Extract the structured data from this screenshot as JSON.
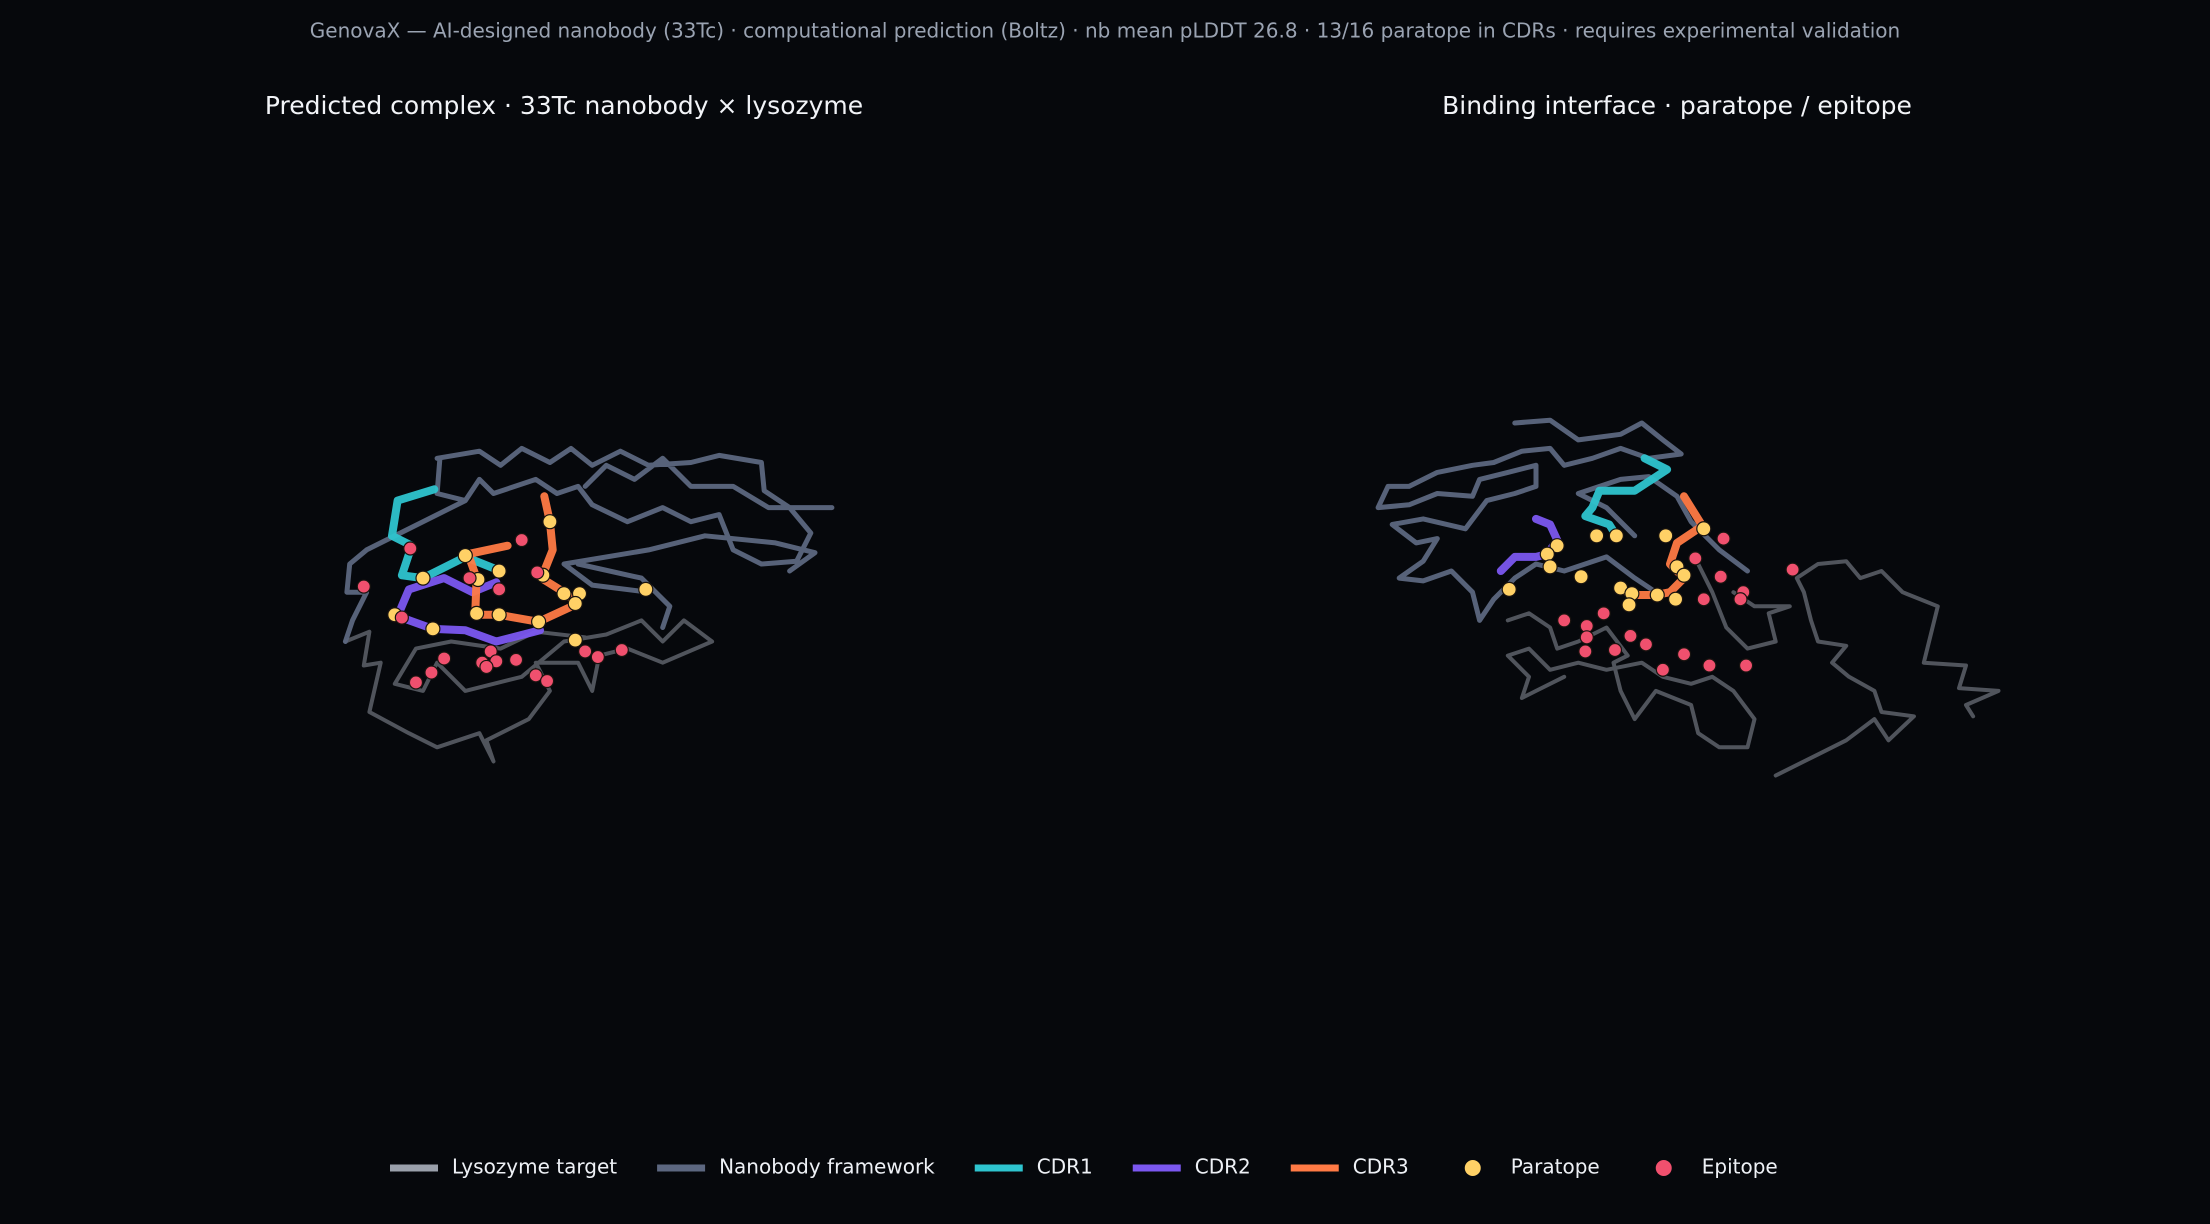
{
  "subtitle": "GenovaX — AI-designed nanobody (33Tc) · computational prediction (Boltz) · nb mean pLDDT 26.8 · 13/16 paratope in CDRs · requires experimental validation",
  "chart_data": {
    "type": "structure",
    "series": [
      {
        "name": "Lysozyme target",
        "color": "#9aa0ab",
        "kind": "line",
        "width": 4
      },
      {
        "name": "Nanobody framework",
        "color": "#5c6780",
        "kind": "line",
        "width": 5
      },
      {
        "name": "CDR1",
        "color": "#2ec4cf",
        "kind": "line",
        "width": 8
      },
      {
        "name": "CDR2",
        "color": "#7b57f0",
        "kind": "line",
        "width": 8
      },
      {
        "name": "CDR3",
        "color": "#ff7a45",
        "kind": "line",
        "width": 8
      },
      {
        "name": "Paratope",
        "color": "#ffd166",
        "kind": "point",
        "width": 7
      },
      {
        "name": "Epitope",
        "color": "#f0506e",
        "kind": "point",
        "width": 6.5
      }
    ],
    "panels": [
      {
        "title": "Predicted complex · 33Tc nanobody × lysozyme",
        "xlim": [
          100,
          700
        ],
        "ylim": [
          800,
          100
        ],
        "traces": [
          {
            "x": [
              245,
              262,
              258,
              270,
              262,
              290,
              310,
              340,
              350,
              345,
              375,
              390,
              380,
              410,
              420,
              425,
              445,
              470,
              505,
              485,
              470,
              455,
              430,
              400,
              370,
              330,
              310,
              300,
              280,
              295,
              320,
              355,
              380,
              415
            ],
            "y": [
              455,
              448,
              472,
              470,
              505,
              520,
              530,
              520,
              540,
              525,
              510,
              490,
              470,
              470,
              490,
              465,
              460,
              470,
              455,
              440,
              455,
              440,
              450,
              455,
              480,
              490,
              470,
              490,
              485,
              460,
              455,
              460,
              448,
              452
            ]
          },
          {
            "x": [
              310,
              340,
              355,
              370,
              390,
              405,
              420,
              440,
              460,
              490,
              510,
              540,
              542,
              560,
              575,
              565,
              540,
              520,
              510,
              490,
              470,
              445,
              420,
              410,
              395,
              380,
              350,
              340,
              330,
              310,
              312,
              null,
              415,
              430,
              450,
              470,
              490,
              520,
              545,
              590,
              null,
              460,
              420,
              400,
              460,
              500,
              550,
              578,
              560,
              null,
              330,
              260,
              248,
              246,
              260,
              250,
              245,
              null,
              410,
              455,
              475,
              470
            ],
            "y": [
              325,
              320,
              330,
              318,
              328,
              318,
              330,
              320,
              330,
              328,
              323,
              328,
              348,
              360,
              378,
              398,
              400,
              390,
              365,
              370,
              360,
              370,
              358,
              345,
              350,
              340,
              350,
              340,
              355,
              350,
              325,
              null,
              345,
              330,
              340,
              325,
              345,
              345,
              360,
              360,
              null,
              420,
              415,
              400,
              390,
              380,
              385,
              392,
              405,
              null,
              355,
              390,
              400,
              420,
              420,
              440,
              455,
              null,
              400,
              410,
              430,
              445
            ]
          },
          {
            "x": [
              308,
              282,
              278,
              292,
              285,
              300,
              330,
              355
            ],
            "y": [
              347,
              355,
              380,
              387,
              408,
              410,
              395,
              405
            ]
          },
          {
            "x": [
              352,
              335,
              315,
              290,
              282,
              307,
              330,
              352,
              383
            ],
            "y": [
              413,
              420,
              410,
              418,
              437,
              446,
              447,
              455,
              447
            ]
          },
          {
            "x": [
              386,
              390,
              392,
              384,
              400,
              410,
              382,
              354,
              337,
              338,
              332,
              360
            ],
            "y": [
              352,
              370,
              390,
              410,
              420,
              428,
              441,
              436,
              436,
              410,
              393,
              387
            ]
          },
          {
            "x": [
              390,
              330,
              300,
              339,
              354,
              385,
              400,
              411,
              408,
              458,
              338,
              354,
              382,
              280,
              307,
              408
            ],
            "y": [
              370,
              394,
              410,
              411,
              405,
              408,
              421,
              421,
              428,
              418,
              435,
              436,
              441,
              436,
              446,
              454
            ]
          },
          {
            "x": [
              291,
              370,
              258,
              354,
              333,
              381,
              285,
              348,
              315,
              342,
              352,
              366,
              345,
              306,
              295,
              380,
              388,
              415,
              424,
              441
            ],
            "y": [
              389,
              383,
              416,
              418,
              410,
              406,
              438,
              462,
              467,
              470,
              469,
              468,
              473,
              477,
              484,
              479,
              483,
              462,
              466,
              461
            ]
          }
        ]
      },
      {
        "title": "Binding interface · paratope / epitope",
        "xlim": [
          890,
          1490
        ],
        "ylim": [
          800,
          100
        ],
        "traces": [
          {
            "x": [
              1260,
              1290,
              1310,
              1330,
              1340,
              1358,
              1335,
              1330,
              1312,
              1300,
              1310,
              1290,
              1285,
              1280,
              1275,
              1290,
              1310,
              1320,
              1335,
              1350,
              1375,
              1365,
              1395,
              1390,
              1418,
              1395,
              1400,
              null,
              1205,
              1215,
              1225,
              1240,
              1260,
              1255,
              1270,
              1245,
              1230,
              null,
              1070,
              1085,
              1100,
              1105,
              1120,
              1140,
              1155,
              1145,
              1150,
              1160,
              1175,
              1200,
              1205,
              1220,
              1240,
              1245,
              1230,
              1215,
              1200,
              1180,
              1165,
              1140,
              1120,
              1100,
              1085,
              1070,
              1085,
              1080,
              1090,
              1110
            ],
            "y": [
              550,
              535,
              525,
              510,
              525,
              508,
              505,
              490,
              480,
              470,
              458,
              455,
              440,
              420,
              410,
              400,
              398,
              410,
              405,
              420,
              430,
              470,
              472,
              488,
              490,
              500,
              508,
              null,
              400,
              420,
              445,
              460,
              455,
              435,
              430,
              430,
              420,
              null,
              440,
              435,
              445,
              460,
              455,
              445,
              465,
              470,
              490,
              510,
              490,
              500,
              520,
              530,
              530,
              510,
              490,
              480,
              485,
              480,
              470,
              475,
              470,
              475,
              460,
              465,
              480,
              495,
              490,
              480
            ]
          },
          {
            "x": [
              1075,
              1100,
              1120,
              1150,
              1165,
              1180,
              1193,
              1170,
              1150,
              1130,
              1110,
              1100,
              1080,
              1060,
              1045,
              1020,
              1000,
              985,
              978,
              1000,
              1020,
              1045,
              1050,
              1070,
              1090,
              1090,
              1075,
              1055,
              1040,
              1010,
              988,
              1005,
              1020,
              1010,
              993,
              1010,
              1030,
              1045,
              1050,
              1060,
              1075,
              1090,
              1110,
              1140,
              1160,
              1175,
              null,
              1160,
              1140,
              1120,
              1150,
              1170,
              1190,
              1200,
              1220,
              1240
            ],
            "y": [
              300,
              298,
              312,
              308,
              300,
              312,
              322,
              325,
              318,
              325,
              330,
              318,
              320,
              328,
              330,
              335,
              345,
              345,
              360,
              358,
              350,
              352,
              340,
              335,
              330,
              345,
              350,
              355,
              375,
              368,
              372,
              385,
              382,
              398,
              410,
              412,
              405,
              420,
              440,
              425,
              410,
              400,
              405,
              395,
              410,
              420,
              null,
              380,
              360,
              350,
              340,
              338,
              352,
              370,
              390,
              405
            ]
          },
          {
            "x": [
              1167,
              1183,
              1160,
              1135,
              1130,
              1125,
              1142,
              1147
            ],
            "y": [
              325,
              333,
              348,
              348,
              360,
              366,
              372,
              380
            ]
          },
          {
            "x": [
              1090,
              1100,
              1105,
              1098,
              1090,
              1075,
              1065
            ],
            "y": [
              368,
              372,
              383,
              393,
              395,
              395,
              405
            ]
          },
          {
            "x": [
              1195,
              1208,
              1190,
              1185,
              1195,
              1185,
              1175,
              1160,
              1150
            ],
            "y": [
              352,
              373,
              385,
              400,
              410,
              420,
              422,
              422,
              418
            ]
          },
          {
            "x": [
              1133,
              1147,
              1105,
              1098,
              1100,
              1122,
              1071,
              1182,
              1209,
              1190,
              1195,
              1150,
              1158,
              1156,
              1176,
              1189
            ],
            "y": [
              380,
              380,
              387,
              393,
              402,
              409,
              418,
              380,
              375,
              402,
              408,
              417,
              421,
              429,
              422,
              425
            ]
          },
          {
            "x": [
              1223,
              1203,
              1272,
              1221,
              1209,
              1237,
              1235,
              1110,
              1126,
              1138,
              1126,
              1125,
              1146,
              1157,
              1168,
              1195,
              1180,
              1213,
              1239
            ],
            "y": [
              382,
              396,
              404,
              409,
              425,
              420,
              425,
              440,
              444,
              435,
              452,
              462,
              461,
              451,
              457,
              464,
              475,
              472,
              472
            ]
          }
        ]
      }
    ]
  }
}
